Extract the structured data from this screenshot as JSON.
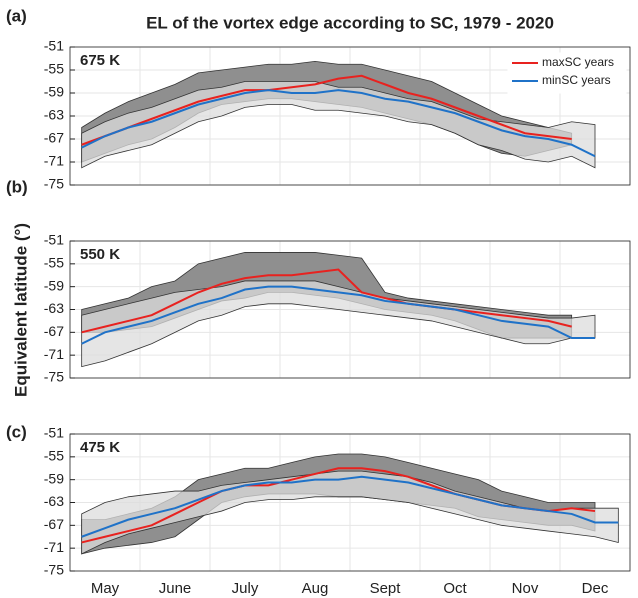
{
  "chart_data": [
    {
      "type": "line",
      "title": "EL of the vortex edge according to SC, 1979 - 2020",
      "panel_label": "(a)",
      "annotation": "675 K",
      "categories": [
        null,
        "May",
        null,
        null,
        "June",
        null,
        null,
        "July",
        null,
        null,
        "Aug",
        null,
        null,
        "Sept",
        null,
        null,
        "Oct",
        null,
        null,
        "Nov",
        null,
        null,
        "Dec",
        null
      ],
      "ylim": [
        -75,
        -51
      ],
      "yticks": [
        -75,
        -71,
        -67,
        -63,
        -59,
        -55,
        -51
      ],
      "grid": true,
      "legend": "upper right",
      "bands": [
        {
          "color": "#8f8f8f",
          "low": [
            -71,
            -69.5,
            -68,
            -67,
            -65,
            -62.5,
            -61,
            -60.5,
            -60,
            -60,
            -60.5,
            -61,
            -61.5,
            -62.5,
            -63.5,
            -64.5,
            -66,
            -68,
            -69.5,
            -70,
            -69,
            -68,
            null,
            null
          ],
          "high": [
            -65,
            -62.5,
            -60.5,
            -59,
            -57.5,
            -55.5,
            -55,
            -54.5,
            -54,
            -54,
            -53.5,
            -54,
            -54,
            -55,
            -56,
            -57,
            -59,
            -61,
            -63,
            -64,
            -65,
            -66,
            null,
            null
          ]
        },
        {
          "color": "#dcdcdc",
          "low": [
            -72,
            -70,
            -69,
            -68,
            -66,
            -64,
            -63,
            -61.5,
            -61,
            -61,
            -62,
            -62,
            -62.5,
            -63,
            -64,
            -64.5,
            -66,
            -68,
            -69,
            -70.5,
            -71,
            -70,
            -72,
            null
          ],
          "high": [
            -66,
            -64,
            -62.5,
            -61.5,
            -60,
            -58.5,
            -58,
            -57,
            -57,
            -57,
            -57,
            -58,
            -58,
            -59,
            -60,
            -60.5,
            -62,
            -63.5,
            -64,
            -64.5,
            -65,
            -64,
            -64.5,
            null
          ]
        }
      ],
      "series": [
        {
          "name": "maxSC years",
          "color": "#e8221f",
          "values": [
            -68,
            -66.5,
            -65,
            -63.5,
            -62,
            -60.5,
            -59.5,
            -58.5,
            -58.5,
            -58,
            -57.5,
            -56.5,
            -56,
            -57.5,
            -59,
            -60,
            -61.5,
            -63,
            -64.5,
            -66,
            -66.5,
            -67,
            null,
            null
          ]
        },
        {
          "name": "minSC years",
          "color": "#1f72c8",
          "values": [
            -68.5,
            -66.5,
            -65,
            -64,
            -62.5,
            -61,
            -60,
            -59,
            -58.5,
            -59,
            -59,
            -58.5,
            -59,
            -60,
            -60.5,
            -61.5,
            -62.5,
            -64,
            -65.5,
            -66.5,
            -67,
            -68,
            -70,
            null
          ]
        }
      ]
    },
    {
      "type": "line",
      "panel_label": "(b)",
      "annotation": "550 K",
      "ylabel": "Equivalent latitude (°)",
      "categories": [
        null,
        "May",
        null,
        null,
        "June",
        null,
        null,
        "July",
        null,
        null,
        "Aug",
        null,
        null,
        "Sept",
        null,
        null,
        "Oct",
        null,
        null,
        "Nov",
        null,
        null,
        "Dec",
        null
      ],
      "ylim": [
        -75,
        -51
      ],
      "yticks": [
        -75,
        -71,
        -67,
        -63,
        -59,
        -55,
        -51
      ],
      "grid": true,
      "bands": [
        {
          "color": "#8f8f8f",
          "low": [
            -67,
            -67,
            -66.5,
            -66,
            -64.5,
            -63,
            -61.5,
            -61,
            -60,
            -60,
            -60.5,
            -61,
            -62,
            -63,
            -63.5,
            -64,
            -65,
            -66.5,
            -68,
            -68,
            -68,
            -68,
            null,
            null
          ],
          "high": [
            -63,
            -62,
            -61,
            -59,
            -58,
            -55,
            -54,
            -53,
            -53,
            -53,
            -53,
            -53.5,
            -54,
            -60,
            -61,
            -61.5,
            -62,
            -62.5,
            -63,
            -63.5,
            -64,
            -64,
            null,
            null
          ]
        },
        {
          "color": "#dcdcdc",
          "low": [
            -73,
            -72,
            -70.5,
            -69,
            -67,
            -65,
            -64,
            -62.5,
            -62,
            -62,
            -62.5,
            -63,
            -63.5,
            -64,
            -64.5,
            -65,
            -66,
            -67,
            -68,
            -69,
            -69,
            -68,
            -68,
            null
          ],
          "high": [
            -64,
            -63,
            -62,
            -61,
            -60,
            -59.5,
            -59,
            -58,
            -58,
            -58,
            -58,
            -59,
            -60,
            -61,
            -61.5,
            -62,
            -62.5,
            -63,
            -63.5,
            -64,
            -64.5,
            -64.5,
            -64,
            null
          ]
        }
      ],
      "series": [
        {
          "color": "#e8221f",
          "values": [
            -67,
            -66,
            -65,
            -64,
            -62,
            -60,
            -58.5,
            -57.5,
            -57,
            -57,
            -56.5,
            -56,
            -60,
            -61,
            -62,
            -62.5,
            -63,
            -63.5,
            -64,
            -64.5,
            -65,
            -66,
            null,
            null
          ]
        },
        {
          "color": "#1f72c8",
          "values": [
            -69,
            -67,
            -66,
            -65,
            -63.5,
            -62,
            -61,
            -59.5,
            -59,
            -59,
            -59.5,
            -60,
            -60.5,
            -61.5,
            -62,
            -62.5,
            -63,
            -64,
            -65,
            -65.5,
            -66,
            -68,
            -68,
            null
          ]
        }
      ]
    },
    {
      "type": "line",
      "panel_label": "(c)",
      "annotation": "475 K",
      "categories": [
        null,
        "May",
        null,
        null,
        "June",
        null,
        null,
        "July",
        null,
        null,
        "Aug",
        null,
        null,
        "Sept",
        null,
        null,
        "Oct",
        null,
        null,
        "Nov",
        null,
        null,
        "Dec",
        null
      ],
      "ylim": [
        -75,
        -51
      ],
      "yticks": [
        -75,
        -71,
        -67,
        -63,
        -59,
        -55,
        -51
      ],
      "grid": true,
      "bands": [
        {
          "color": "#8f8f8f",
          "low": [
            -72,
            -71,
            -70.5,
            -70,
            -69,
            -66,
            -63,
            -62,
            -61.5,
            -61.5,
            -61.5,
            -62,
            -62,
            -62.5,
            -63,
            -63.5,
            -64,
            -65.5,
            -66,
            -66.5,
            -67,
            -67,
            -68,
            null
          ],
          "high": [
            -66,
            -66,
            -65,
            -64,
            -62,
            -59,
            -58,
            -57,
            -57,
            -56,
            -55,
            -54.5,
            -54.5,
            -55,
            -56,
            -57,
            -58,
            -59,
            -61,
            -62,
            -63,
            -63,
            -63,
            null
          ]
        },
        {
          "color": "#dcdcdc",
          "low": [
            -72,
            -70,
            -68.5,
            -67.5,
            -66.5,
            -65.5,
            -64.5,
            -63,
            -62.5,
            -62.5,
            -62,
            -62,
            -62,
            -62.5,
            -63,
            -64,
            -65,
            -66,
            -67,
            -67.5,
            -68,
            -68.5,
            -69,
            -70
          ],
          "high": [
            -65,
            -63,
            -62,
            -61.5,
            -61,
            -61,
            -60,
            -59.5,
            -59,
            -58.5,
            -58,
            -57.5,
            -57.5,
            -58,
            -58.5,
            -59.5,
            -61,
            -62,
            -63,
            -64,
            -64.5,
            -64,
            -64,
            -64
          ]
        }
      ],
      "series": [
        {
          "color": "#e8221f",
          "values": [
            -70,
            -69,
            -68,
            -67,
            -65,
            -63,
            -61,
            -60,
            -60,
            -59,
            -58,
            -57,
            -57,
            -57.5,
            -58.5,
            -60,
            -61.5,
            -62.5,
            -63.5,
            -64,
            -64.5,
            -64,
            -64.5,
            null
          ]
        },
        {
          "color": "#1f72c8",
          "values": [
            -69,
            -67.5,
            -66,
            -65,
            -64,
            -62.5,
            -61,
            -60,
            -59.5,
            -59.5,
            -59,
            -59,
            -58.5,
            -59,
            -59.5,
            -60.5,
            -61.5,
            -62.5,
            -63.5,
            -64,
            -64.5,
            -65,
            -66.5,
            -66.5
          ]
        }
      ]
    }
  ]
}
